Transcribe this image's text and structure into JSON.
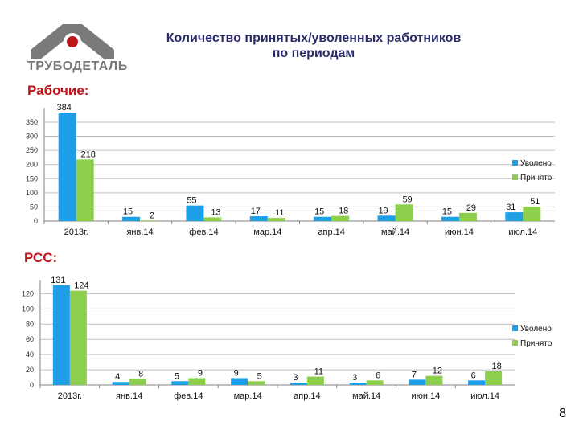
{
  "header": {
    "logo_text": "ТРУБОДЕТАЛЬ",
    "title_line1": "Количество принятых/уволенных работников",
    "title_line2": "по периодам",
    "page_number": "8"
  },
  "colors": {
    "uvoleno": "#1f9ee8",
    "prinyato": "#8ccf4d",
    "axis": "#808080",
    "grid": "#bfbfbf",
    "accent": "#c0141b"
  },
  "chart_data": [
    {
      "type": "bar",
      "title": "Рабочие:",
      "categories": [
        "2013г.",
        "янв.14",
        "фев.14",
        "мар.14",
        "апр.14",
        "май.14",
        "июн.14",
        "июл.14"
      ],
      "series": [
        {
          "name": "Уволено",
          "values": [
            384,
            15,
            55,
            17,
            15,
            19,
            15,
            31
          ]
        },
        {
          "name": "Принято",
          "values": [
            218,
            2,
            13,
            11,
            18,
            59,
            29,
            51
          ]
        }
      ],
      "yticks": [
        0,
        50,
        100,
        150,
        200,
        250,
        300,
        350
      ],
      "ylim": [
        0,
        384
      ],
      "legend": "right"
    },
    {
      "type": "bar",
      "title": "РСС:",
      "categories": [
        "2013г.",
        "янв.14",
        "фев.14",
        "мар.14",
        "апр.14",
        "май.14",
        "июн.14",
        "июл.14"
      ],
      "series": [
        {
          "name": "Уволено",
          "values": [
            131,
            4,
            5,
            9,
            3,
            3,
            7,
            6
          ]
        },
        {
          "name": "Принято",
          "values": [
            124,
            8,
            9,
            5,
            11,
            6,
            12,
            18
          ]
        }
      ],
      "yticks": [
        0,
        20,
        40,
        60,
        80,
        100,
        120
      ],
      "ylim": [
        0,
        131
      ],
      "legend": "right"
    }
  ]
}
